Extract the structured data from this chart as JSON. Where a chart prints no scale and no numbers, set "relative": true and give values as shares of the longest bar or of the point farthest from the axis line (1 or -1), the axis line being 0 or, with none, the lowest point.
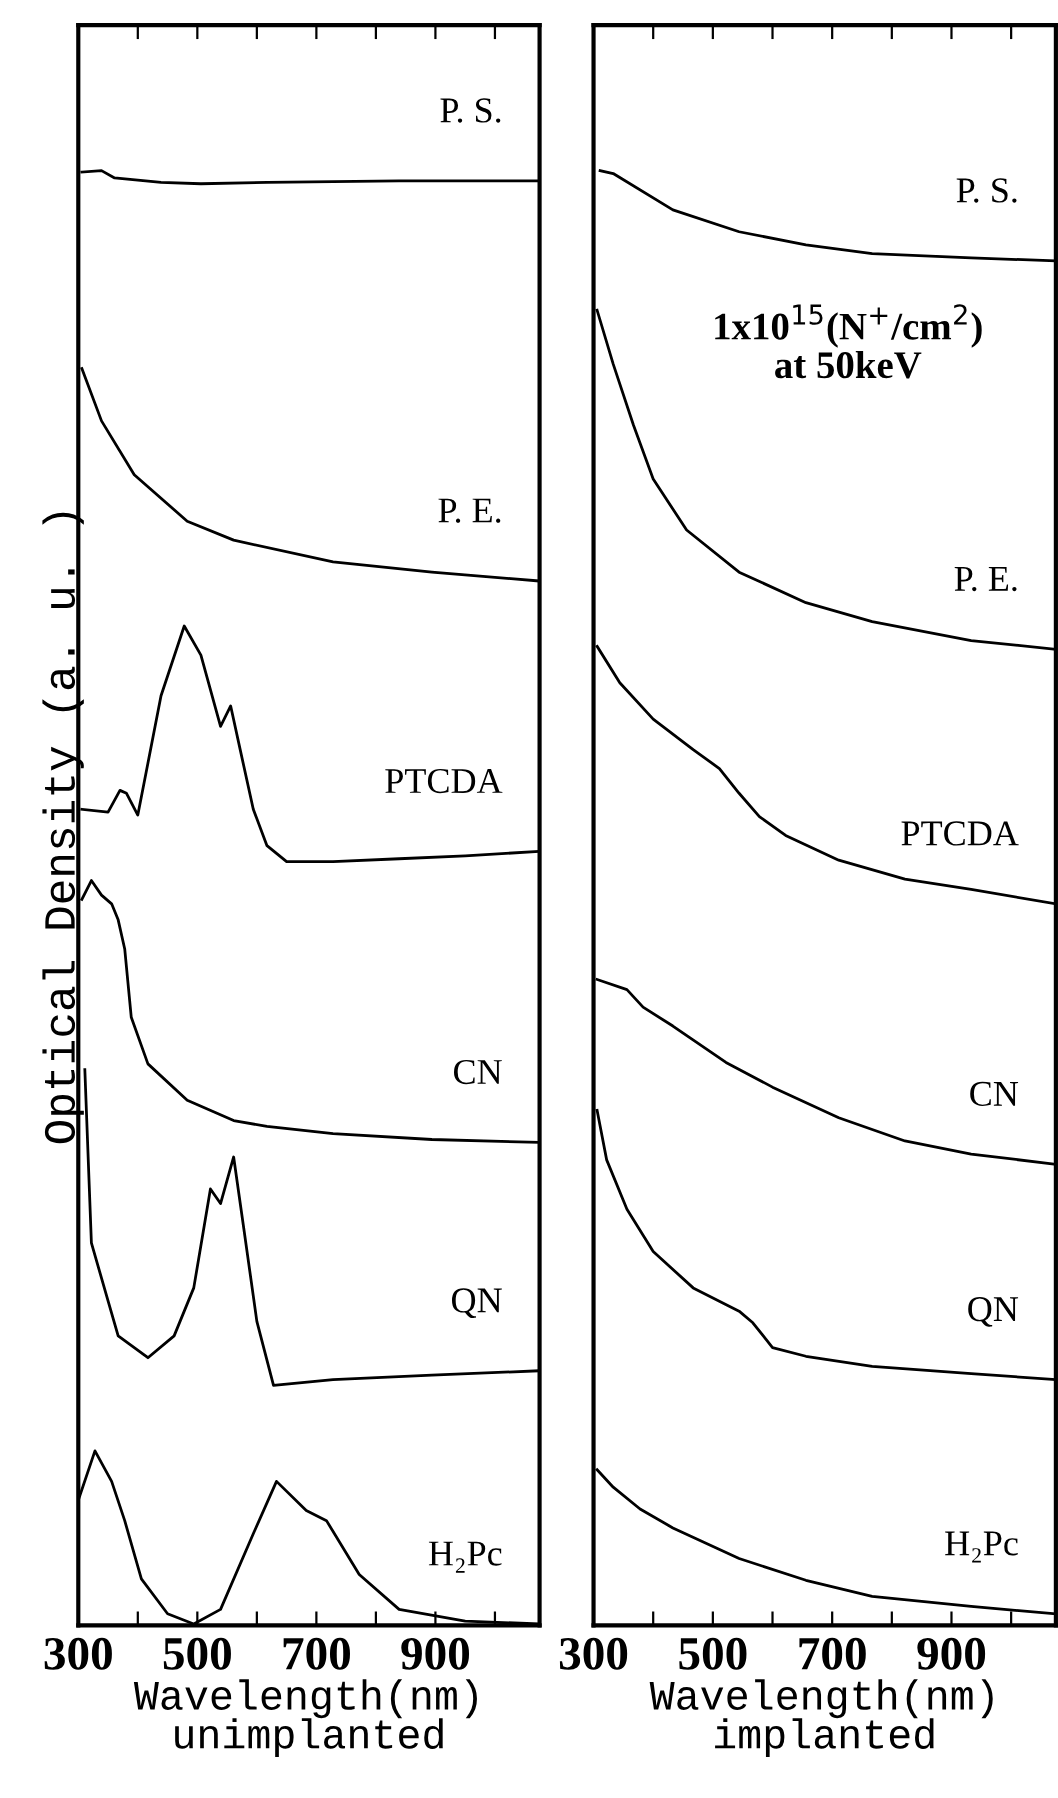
{
  "chart_data": [
    {
      "type": "line",
      "relative": true,
      "ylabel": "Optical Density (a. u. )",
      "xlabel": "Wavelength(nm)\nunimplanted",
      "xlim": [
        300,
        1075
      ],
      "xticks": [
        300,
        {
          "value": 400,
          "label": null
        },
        500,
        {
          "value": 600,
          "label": null
        },
        700,
        {
          "value": 800,
          "label": null
        },
        900,
        {
          "value": 1000,
          "label": null
        }
      ],
      "tick_labels": "x",
      "grid": false,
      "marker": "none",
      "line_style": "solid",
      "series": [
        {
          "name": "P. S.",
          "color": "#000000",
          "x": [
            306,
            339,
            361,
            439,
            506,
            617,
            839,
            1072
          ],
          "values": [
            0.999,
            1.0,
            0.995,
            0.992,
            0.991,
            0.992,
            0.993,
            0.993
          ]
        },
        {
          "name": "P. E.",
          "color": "#000000",
          "x": [
            306,
            339,
            394,
            483,
            561,
            728,
            894,
            1072
          ],
          "values": [
            0.864,
            0.828,
            0.791,
            0.759,
            0.746,
            0.731,
            0.724,
            0.718
          ]
        },
        {
          "name": "PTCDA",
          "color": "#000000",
          "x": [
            306,
            350,
            370,
            381,
            400,
            439,
            478,
            506,
            539,
            556,
            572,
            594,
            617,
            650,
            728,
            839,
            950,
            1072
          ],
          "values": [
            0.561,
            0.559,
            0.574,
            0.572,
            0.557,
            0.639,
            0.687,
            0.667,
            0.618,
            0.632,
            0.602,
            0.561,
            0.536,
            0.525,
            0.525,
            0.527,
            0.529,
            0.532
          ]
        },
        {
          "name": "CN",
          "color": "#000000",
          "x": [
            306,
            322,
            339,
            356,
            367,
            378,
            389,
            417,
            483,
            561,
            617,
            728,
            894,
            1072
          ],
          "values": [
            0.499,
            0.512,
            0.502,
            0.496,
            0.485,
            0.465,
            0.418,
            0.386,
            0.361,
            0.347,
            0.343,
            0.338,
            0.334,
            0.332
          ]
        },
        {
          "name": "QN",
          "color": "#000000",
          "x": [
            311,
            322,
            350,
            367,
            417,
            461,
            494,
            522,
            539,
            561,
            578,
            600,
            628,
            728,
            894,
            1072
          ],
          "values": [
            0.382,
            0.263,
            0.223,
            0.199,
            0.184,
            0.199,
            0.232,
            0.3,
            0.29,
            0.322,
            0.273,
            0.209,
            0.165,
            0.169,
            0.172,
            0.175
          ]
        },
        {
          "name": "H₂Pc",
          "color": "#000000",
          "x": [
            300,
            328,
            356,
            378,
            406,
            450,
            494,
            539,
            594,
            633,
            683,
            717,
            772,
            839,
            950,
            1072
          ],
          "values": [
            0.086,
            0.12,
            0.099,
            0.072,
            0.032,
            0.008,
            0.001,
            0.011,
            0.063,
            0.099,
            0.079,
            0.072,
            0.035,
            0.011,
            0.003,
            0.001
          ]
        }
      ]
    },
    {
      "type": "line",
      "relative": true,
      "xlabel": "Wavelength(nm)\nimplanted",
      "xlim": [
        300,
        1075
      ],
      "xticks": [
        300,
        {
          "value": 400,
          "label": null
        },
        500,
        {
          "value": 600,
          "label": null
        },
        700,
        {
          "value": 800,
          "label": null
        },
        900,
        {
          "value": 1000,
          "label": null
        }
      ],
      "tick_labels": "x",
      "grid": false,
      "marker": "none",
      "line_style": "solid",
      "annotations": [
        "1x10$^{15}$(N$^{+}$/cm$^{2}$)\nat 50keV"
      ],
      "series": [
        {
          "name": "P. S.",
          "color": "#000000",
          "x": [
            311,
            333,
            433,
            544,
            656,
            767,
            933,
            1074
          ],
          "values": [
            1.0,
            0.998,
            0.973,
            0.958,
            0.949,
            0.943,
            0.94,
            0.938
          ]
        },
        {
          "name": "P. E.",
          "color": "#000000",
          "x": [
            306,
            333,
            367,
            400,
            456,
            544,
            656,
            767,
            933,
            1074
          ],
          "values": [
            0.904,
            0.867,
            0.825,
            0.788,
            0.753,
            0.724,
            0.703,
            0.69,
            0.677,
            0.671
          ]
        },
        {
          "name": "PTCDA",
          "color": "#000000",
          "x": [
            306,
            344,
            400,
            467,
            511,
            544,
            578,
            622,
            711,
            822,
            933,
            1074
          ],
          "values": [
            0.673,
            0.648,
            0.623,
            0.602,
            0.589,
            0.572,
            0.556,
            0.543,
            0.526,
            0.513,
            0.506,
            0.496
          ]
        },
        {
          "name": "CN",
          "color": "#000000",
          "x": [
            306,
            356,
            383,
            433,
            522,
            600,
            711,
            822,
            933,
            1074
          ],
          "values": [
            0.444,
            0.437,
            0.425,
            0.412,
            0.387,
            0.37,
            0.349,
            0.333,
            0.324,
            0.317
          ]
        },
        {
          "name": "QN",
          "color": "#000000",
          "x": [
            306,
            322,
            356,
            400,
            467,
            544,
            567,
            600,
            656,
            767,
            933,
            1074
          ],
          "values": [
            0.354,
            0.32,
            0.286,
            0.257,
            0.232,
            0.216,
            0.208,
            0.191,
            0.185,
            0.178,
            0.173,
            0.169
          ]
        },
        {
          "name": "H₂Pc",
          "color": "#000000",
          "x": [
            306,
            333,
            378,
            433,
            544,
            656,
            767,
            933,
            1074
          ],
          "values": [
            0.107,
            0.095,
            0.08,
            0.067,
            0.046,
            0.031,
            0.02,
            0.013,
            0.008
          ]
        }
      ]
    }
  ]
}
